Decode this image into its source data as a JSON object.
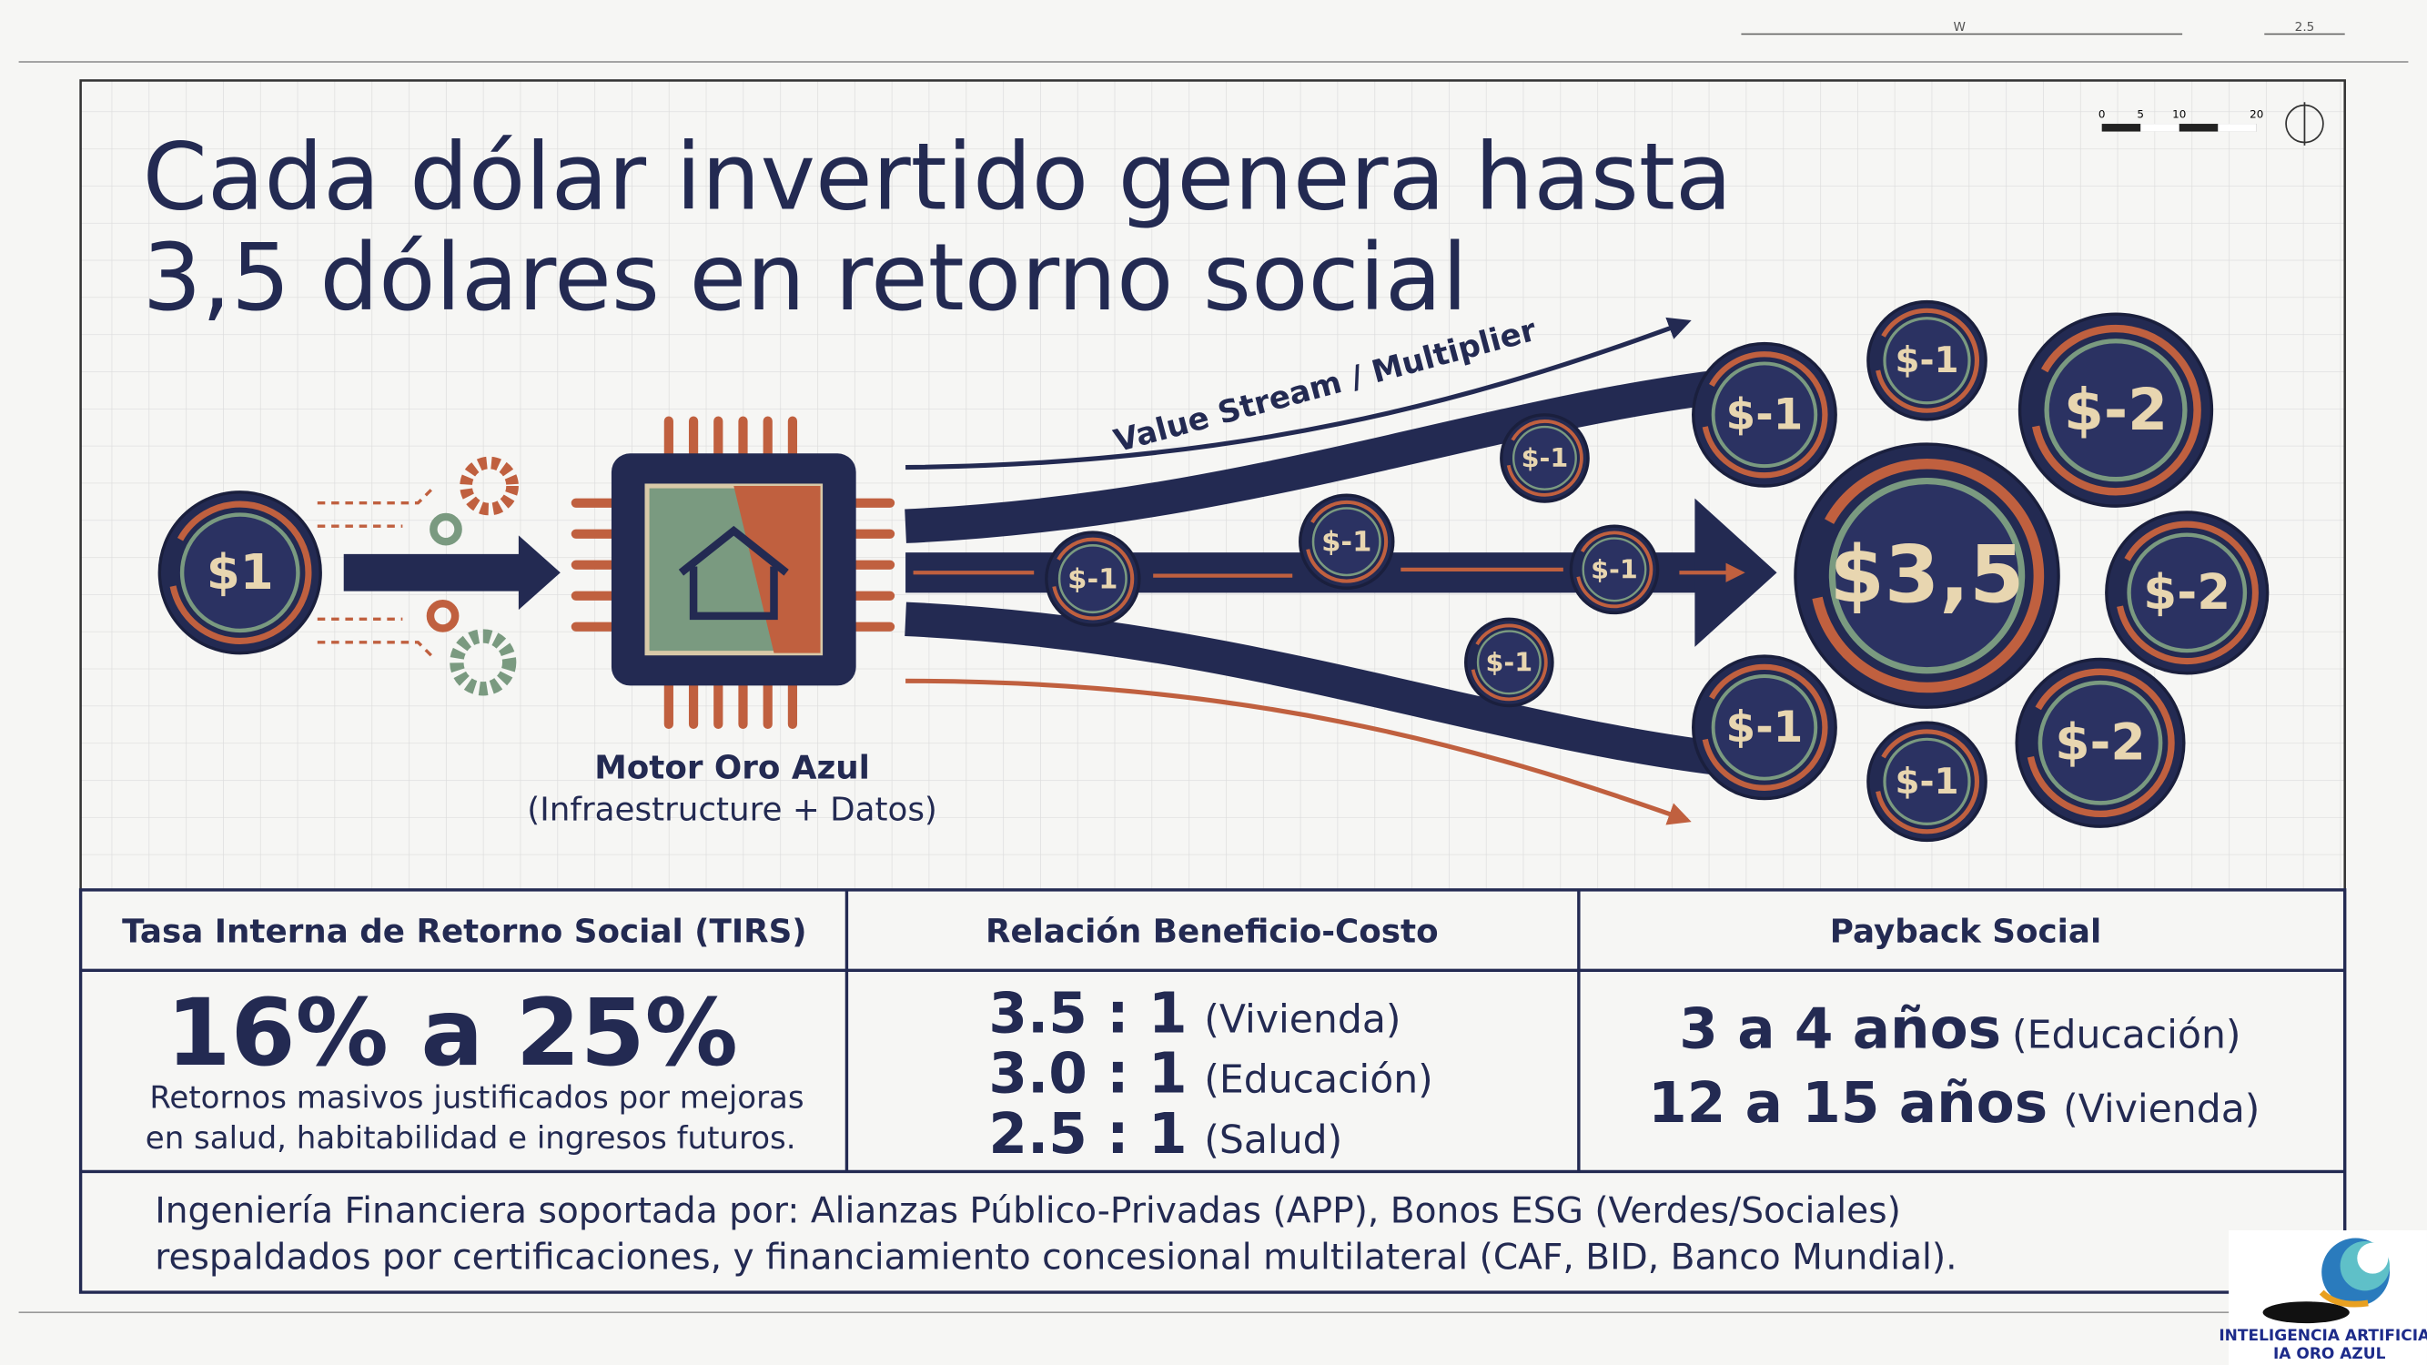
{
  "header": {
    "title_lines": [
      "Cada dólar invertido genera hasta",
      "3,5 dólares en retorno social"
    ]
  },
  "diagram": {
    "input_coin": "$1",
    "motor": {
      "name": "Motor Oro Azul",
      "subtitle": "(Infraestructure + Datos)"
    },
    "stream_label": "Value Stream / Multiplier",
    "stream_coins": [
      "$-1",
      "$-1",
      "$-1",
      "$-1",
      "$-1"
    ],
    "center_coin": "$3,5",
    "output_coins": [
      "$-1",
      "$-1",
      "$-2",
      "$-2",
      "$-1",
      "$-1",
      "$-2"
    ]
  },
  "table": {
    "headers": [
      "Tasa Interna de Retorno Social (TIRS)",
      "Relación Beneficio-Costo",
      "Payback Social"
    ],
    "tirs": {
      "value": "16% a 25%",
      "note_lines": [
        "Retornos masivos justificados por mejoras",
        "en salud, habitabilidad e ingresos futuros."
      ]
    },
    "benefit_cost": [
      {
        "ratio": "3.5 : 1",
        "sector": "(Vivienda)"
      },
      {
        "ratio": "3.0 : 1",
        "sector": "(Educación)"
      },
      {
        "ratio": "2.5 : 1",
        "sector": "(Salud)"
      }
    ],
    "payback": [
      {
        "years": "3 a 4 años",
        "sector": "(Educación)"
      },
      {
        "years": "12 a 15 años",
        "sector": "(Vivienda)"
      }
    ]
  },
  "footer_lines": [
    "Ingeniería Financiera soportada por: Alianzas Público-Privadas (APP), Bonos ESG (Verdes/Sociales)",
    "respaldados por certificaciones, y financiamiento concesional multilateral (CAF, BID, Banco Mundial)."
  ],
  "scale": {
    "labels": [
      "0",
      "5",
      "10",
      "20"
    ],
    "dims": [
      "W",
      "2.5"
    ]
  },
  "logo": {
    "lines": [
      "INTELIGENCIA ARTIFICIAL",
      "IA ORO AZUL"
    ]
  }
}
